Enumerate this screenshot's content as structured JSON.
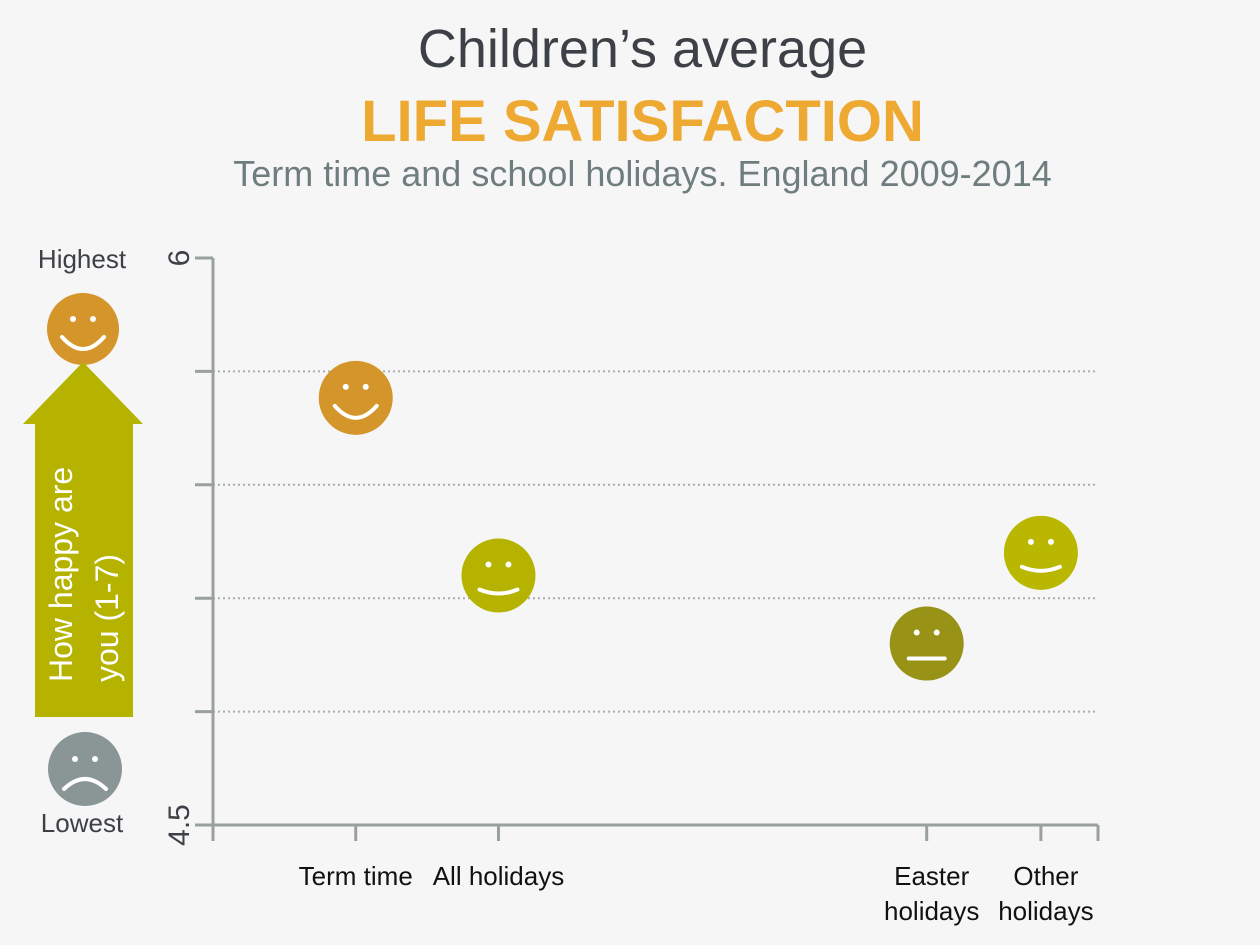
{
  "title": {
    "line1": "Children’s average",
    "line2": "LIFE SATISFACTION",
    "subtitle": "Term time and school holidays. England 2009-2014"
  },
  "legend": {
    "highest": "Highest",
    "lowest": "Lowest",
    "axis_text_line1": "How happy are",
    "axis_text_line2": "you (1-7)"
  },
  "colors": {
    "background": "#f6f6f6",
    "title_dark": "#3d4147",
    "title_accent": "#eda932",
    "subtitle": "#6f7d7e",
    "arrow": "#b5b300",
    "happy_face": "#d4952a",
    "sad_face": "#8a9696",
    "axis": "#9aa0a0"
  },
  "chart_data": {
    "type": "scatter",
    "title": "Children’s average LIFE SATISFACTION",
    "subtitle": "Term time and school holidays. England 2009-2014",
    "ylabel": "How happy are you (1-7)",
    "ylim": [
      4.5,
      6
    ],
    "ytick_labels": [
      "6",
      "4.5"
    ],
    "gridlines": [
      5.7,
      5.4,
      5.1,
      4.8
    ],
    "grid": true,
    "points": [
      {
        "label": "Term time",
        "label_lines": [
          "Term time"
        ],
        "position": 1,
        "value": 5.63,
        "color": "#d4952a",
        "mood": "happy"
      },
      {
        "label": "All holidays",
        "label_lines": [
          "All holidays"
        ],
        "position": 2,
        "value": 5.16,
        "color": "#b5b300",
        "mood": "slight"
      },
      {
        "label": "Easter holidays",
        "label_lines": [
          "Easter",
          "holidays"
        ],
        "position": 5,
        "value": 4.98,
        "color": "#989317",
        "mood": "neutral"
      },
      {
        "label": "Other holidays",
        "label_lines": [
          "Other",
          "holidays"
        ],
        "position": 5.8,
        "value": 5.22,
        "color": "#b9b700",
        "mood": "slight"
      }
    ],
    "x_range": [
      0,
      6.2
    ]
  }
}
